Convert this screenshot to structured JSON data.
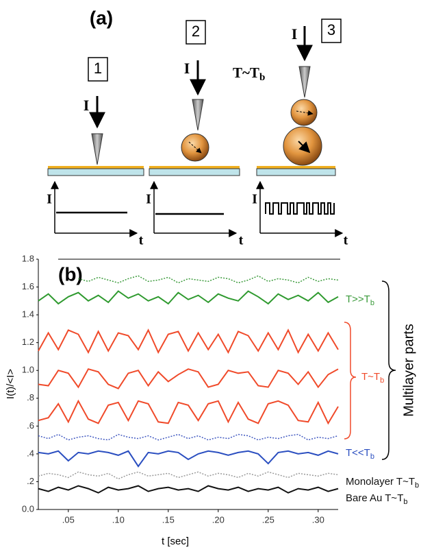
{
  "panel_a": {
    "label": "(a)",
    "steps": [
      "1",
      "2",
      "3"
    ],
    "current": "I",
    "condition": {
      "text": "T~T",
      "sub": "b"
    },
    "plot_y": "I",
    "plot_x": "t"
  },
  "chart_data": {
    "type": "line",
    "panel_label": "(b)",
    "x_label": "t [sec]",
    "y_label": "I(t)/<I>",
    "x": [
      0.02,
      0.03,
      0.04,
      0.05,
      0.06,
      0.07,
      0.08,
      0.09,
      0.1,
      0.11,
      0.12,
      0.13,
      0.14,
      0.15,
      0.16,
      0.17,
      0.18,
      0.19,
      0.2,
      0.21,
      0.22,
      0.23,
      0.24,
      0.25,
      0.26,
      0.27,
      0.28,
      0.29,
      0.3,
      0.31,
      0.32
    ],
    "xlim": [
      0.02,
      0.32
    ],
    "xticks": [
      {
        "value": 0.05,
        "label": ".05"
      },
      {
        "value": 0.1,
        "label": ".10"
      },
      {
        "value": 0.15,
        "label": ".15"
      },
      {
        "value": 0.2,
        "label": ".20"
      },
      {
        "value": 0.25,
        "label": ".25"
      },
      {
        "value": 0.3,
        "label": ".30"
      }
    ],
    "ylim": [
      0,
      1.8
    ],
    "yticks": [
      {
        "value": 0,
        "label": "0.0"
      },
      {
        "value": 0.2,
        "label": ".2"
      },
      {
        "value": 0.4,
        "label": ".4"
      },
      {
        "value": 0.6,
        "label": ".6"
      },
      {
        "value": 0.8,
        "label": ".8"
      },
      {
        "value": 1.0,
        "label": "1.0"
      },
      1.2,
      1.4,
      1.6,
      1.8
    ],
    "grid": false,
    "series": [
      {
        "color": "#3a9a3a",
        "dashed": true,
        "values": [
          null,
          null,
          null,
          null,
          1.66,
          1.64,
          1.67,
          1.65,
          1.63,
          1.66,
          1.68,
          1.64,
          1.65,
          1.67,
          1.63,
          1.66,
          1.65,
          1.64,
          1.67,
          1.66,
          1.63,
          1.65,
          1.68,
          1.64,
          1.66,
          1.65,
          1.63,
          1.67,
          1.64,
          1.66,
          1.65
        ]
      },
      {
        "color": "#2f9a2f",
        "dashed": false,
        "values": [
          1.5,
          1.55,
          1.48,
          1.53,
          1.56,
          1.5,
          1.54,
          1.49,
          1.57,
          1.52,
          1.55,
          1.5,
          1.53,
          1.48,
          1.56,
          1.51,
          1.54,
          1.49,
          1.55,
          1.52,
          1.5,
          1.57,
          1.53,
          1.48,
          1.55,
          1.51,
          1.54,
          1.5,
          1.56,
          1.49,
          1.53
        ]
      },
      {
        "color": "#f04a2a",
        "dashed": false,
        "values": [
          1.14,
          1.27,
          1.15,
          1.29,
          1.26,
          1.13,
          1.28,
          1.14,
          1.27,
          1.25,
          1.15,
          1.29,
          1.13,
          1.26,
          1.28,
          1.14,
          1.27,
          1.15,
          1.26,
          1.13,
          1.28,
          1.25,
          1.14,
          1.27,
          1.15,
          1.29,
          1.13,
          1.26,
          1.14,
          1.27,
          1.15
        ]
      },
      {
        "color": "#f04a2a",
        "dashed": false,
        "values": [
          0.9,
          0.89,
          1.0,
          0.98,
          0.88,
          1.01,
          0.99,
          0.9,
          0.87,
          0.98,
          1.0,
          0.89,
          0.99,
          0.92,
          0.97,
          1.01,
          0.99,
          0.88,
          0.9,
          1.0,
          0.98,
          0.99,
          0.89,
          0.88,
          1.0,
          0.98,
          0.9,
          0.99,
          0.88,
          0.97,
          1.01
        ]
      },
      {
        "color": "#f04a2a",
        "dashed": false,
        "values": [
          0.64,
          0.66,
          0.76,
          0.63,
          0.78,
          0.65,
          0.62,
          0.75,
          0.77,
          0.64,
          0.78,
          0.76,
          0.63,
          0.62,
          0.77,
          0.75,
          0.64,
          0.76,
          0.78,
          0.63,
          0.77,
          0.65,
          0.62,
          0.76,
          0.78,
          0.75,
          0.64,
          0.63,
          0.77,
          0.62,
          0.74
        ]
      },
      {
        "color": "#4058c0",
        "dashed": true,
        "values": [
          0.53,
          0.51,
          0.54,
          0.5,
          0.52,
          0.53,
          0.51,
          0.5,
          0.54,
          0.52,
          0.51,
          0.53,
          0.5,
          0.52,
          0.54,
          0.51,
          0.53,
          0.5,
          0.52,
          0.51,
          0.54,
          0.53,
          0.5,
          0.52,
          0.51,
          0.53,
          0.54,
          0.5,
          0.52,
          0.51,
          0.53
        ]
      },
      {
        "color": "#2a4ec0",
        "dashed": false,
        "values": [
          0.41,
          0.4,
          0.42,
          0.35,
          0.41,
          0.4,
          0.42,
          0.41,
          0.39,
          0.42,
          0.31,
          0.41,
          0.4,
          0.42,
          0.41,
          0.36,
          0.4,
          0.42,
          0.41,
          0.39,
          0.41,
          0.42,
          0.4,
          0.33,
          0.41,
          0.42,
          0.4,
          0.41,
          0.39,
          0.42,
          0.4
        ]
      },
      {
        "color": "#999999",
        "dashed": true,
        "values": [
          0.24,
          0.26,
          0.25,
          0.23,
          0.27,
          0.25,
          0.24,
          0.26,
          0.22,
          0.25,
          0.27,
          0.24,
          0.25,
          0.26,
          0.23,
          0.25,
          0.27,
          0.24,
          0.26,
          0.25,
          0.23,
          0.26,
          0.24,
          0.27,
          0.25,
          0.23,
          0.26,
          0.25,
          0.24,
          0.26,
          0.25
        ]
      },
      {
        "color": "#111111",
        "dashed": false,
        "values": [
          0.15,
          0.13,
          0.16,
          0.14,
          0.17,
          0.15,
          0.12,
          0.16,
          0.14,
          0.15,
          0.17,
          0.13,
          0.15,
          0.16,
          0.14,
          0.15,
          0.13,
          0.17,
          0.15,
          0.14,
          0.16,
          0.13,
          0.15,
          0.14,
          0.16,
          0.12,
          0.15,
          0.14,
          0.16,
          0.13,
          0.15
        ]
      }
    ],
    "annotations": [
      {
        "text": "T>>T",
        "sub": "b"
      },
      {
        "text": "T~T",
        "sub": "b"
      },
      {
        "text": "T<<T",
        "sub": "b"
      },
      {
        "text": "Monolayer T~T",
        "sub": "b"
      },
      {
        "text": "Bare Au T~T",
        "sub": "b"
      },
      {
        "text": "Multilayer parts"
      }
    ]
  }
}
